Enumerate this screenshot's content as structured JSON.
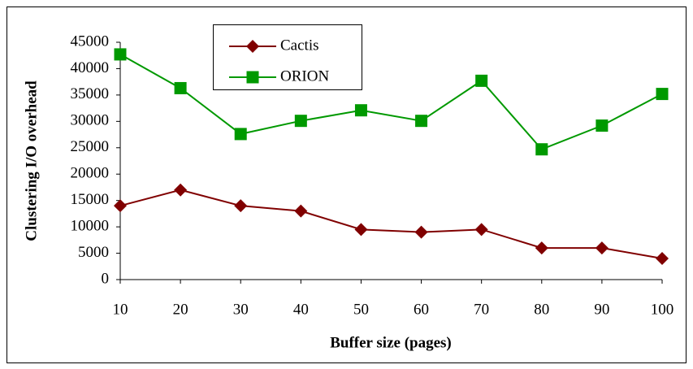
{
  "chart_data": {
    "type": "line",
    "xlabel": "Buffer size (pages)",
    "ylabel": "Clustering I/O overhead",
    "x": [
      10,
      20,
      30,
      40,
      50,
      60,
      70,
      80,
      90,
      100
    ],
    "series": [
      {
        "name": "Cactis",
        "color": "#800000",
        "marker": "diamond",
        "values": [
          14000,
          17000,
          14000,
          13000,
          9500,
          9000,
          9500,
          6000,
          6000,
          4000
        ]
      },
      {
        "name": "ORION",
        "color": "#009900",
        "marker": "square",
        "values": [
          42700,
          36300,
          27600,
          30100,
          32100,
          30100,
          37700,
          24700,
          29200,
          35200
        ]
      }
    ],
    "xlim": [
      10,
      100
    ],
    "xticks": [
      10,
      20,
      30,
      40,
      50,
      60,
      70,
      80,
      90,
      100
    ],
    "ylim": [
      0,
      45000
    ],
    "yticks": [
      0,
      5000,
      10000,
      15000,
      20000,
      25000,
      30000,
      35000,
      40000,
      45000
    ],
    "grid": false,
    "legend": "upper-left"
  }
}
